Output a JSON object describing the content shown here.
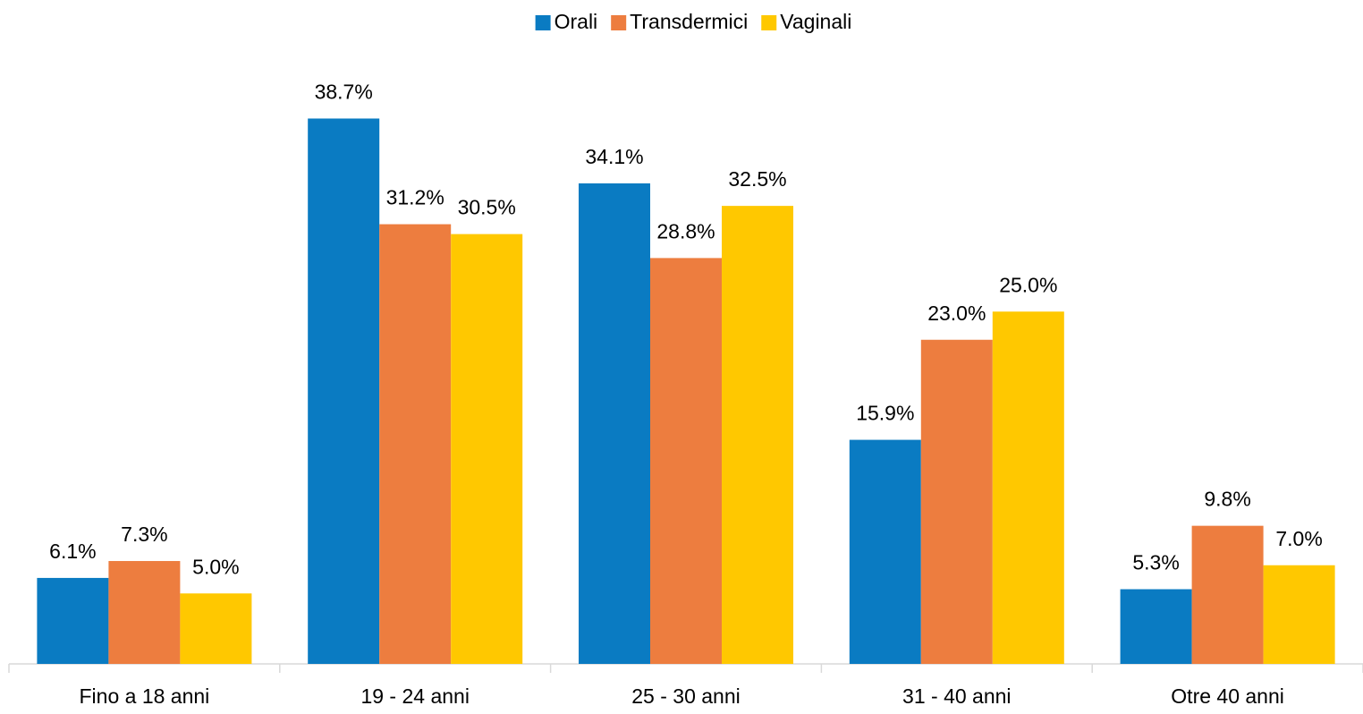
{
  "chart_data": {
    "type": "bar",
    "categories": [
      "Fino a 18 anni",
      "19 - 24 anni",
      "25 - 30 anni",
      "31 - 40 anni",
      "Otre 40 anni"
    ],
    "series": [
      {
        "name": "Orali",
        "color": "#0a7bc2",
        "values": [
          6.1,
          38.7,
          34.1,
          15.9,
          5.3
        ],
        "value_labels": [
          "6.1%",
          "38.7%",
          "34.1%",
          "15.9%",
          "5.3%"
        ]
      },
      {
        "name": "Transdermici",
        "color": "#ed7d3f",
        "values": [
          7.3,
          31.2,
          28.8,
          23.0,
          9.8
        ],
        "value_labels": [
          "7.3%",
          "31.2%",
          "28.8%",
          "23.0%",
          "9.8%"
        ]
      },
      {
        "name": "Vaginali",
        "color": "#ffc800",
        "values": [
          5.0,
          30.5,
          32.5,
          25.0,
          7.0
        ],
        "value_labels": [
          "5.0%",
          "30.5%",
          "32.5%",
          "25.0%",
          "7.0%"
        ]
      }
    ],
    "legend": "top"
  }
}
